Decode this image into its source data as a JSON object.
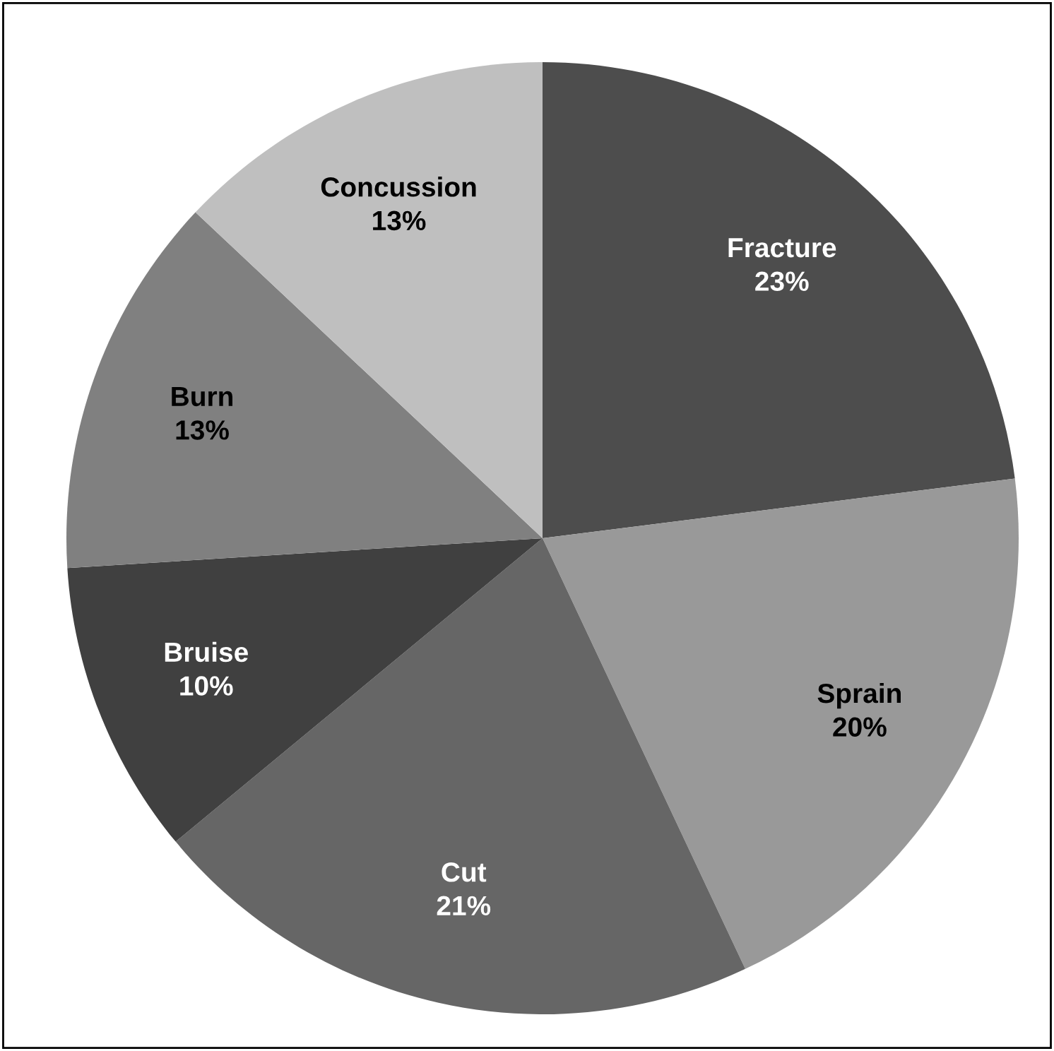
{
  "chart_data": {
    "type": "pie",
    "categories": [
      "Fracture",
      "Sprain",
      "Cut",
      "Bruise",
      "Burn",
      "Concussion"
    ],
    "values": [
      23,
      20,
      21,
      10,
      13,
      13
    ],
    "value_labels": [
      "23%",
      "20%",
      "21%",
      "10%",
      "13%",
      "13%"
    ],
    "colors": [
      "#4d4d4d",
      "#999999",
      "#666666",
      "#404040",
      "#808080",
      "#bfbfbf"
    ]
  }
}
